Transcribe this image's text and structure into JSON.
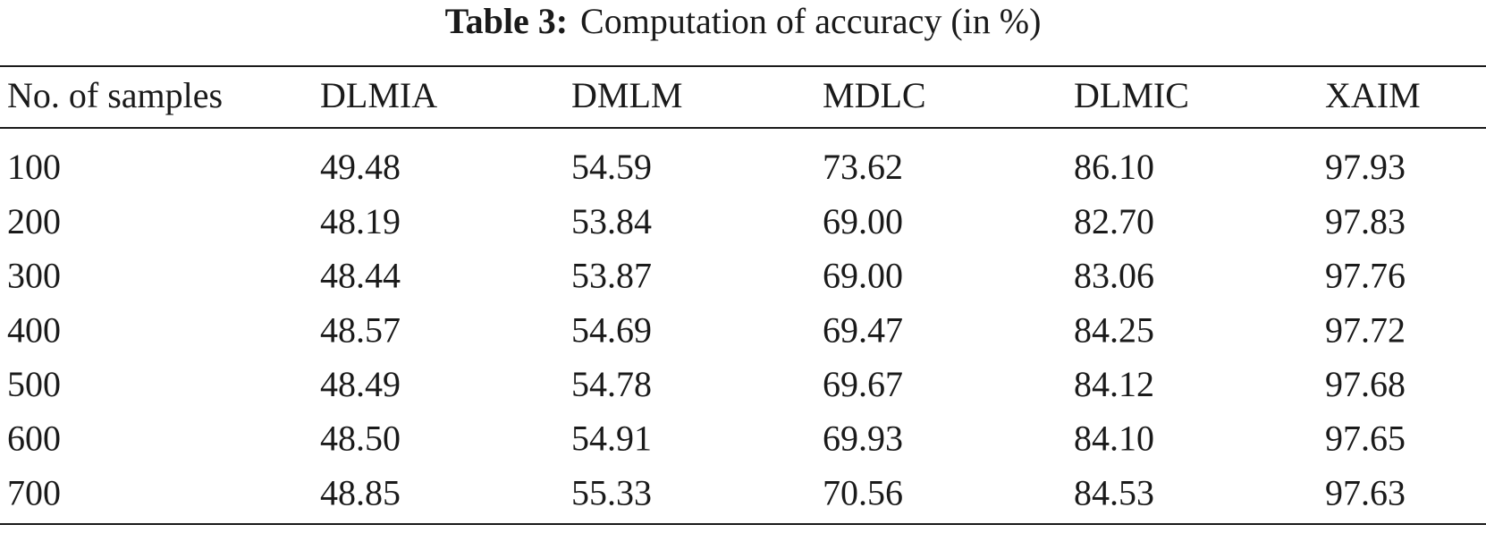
{
  "caption": {
    "label": "Table 3:",
    "text": "Computation of accuracy (in %)"
  },
  "table": {
    "header": [
      "No. of samples",
      "DLMIA",
      "DMLM",
      "MDLC",
      "DLMIC",
      "XAIM"
    ],
    "rows": [
      [
        "100",
        "49.48",
        "54.59",
        "73.62",
        "86.10",
        "97.93"
      ],
      [
        "200",
        "48.19",
        "53.84",
        "69.00",
        "82.70",
        "97.83"
      ],
      [
        "300",
        "48.44",
        "53.87",
        "69.00",
        "83.06",
        "97.76"
      ],
      [
        "400",
        "48.57",
        "54.69",
        "69.47",
        "84.25",
        "97.72"
      ],
      [
        "500",
        "48.49",
        "54.78",
        "69.67",
        "84.12",
        "97.68"
      ],
      [
        "600",
        "48.50",
        "54.91",
        "69.93",
        "84.10",
        "97.65"
      ],
      [
        "700",
        "48.85",
        "55.33",
        "70.56",
        "84.53",
        "97.63"
      ]
    ]
  }
}
